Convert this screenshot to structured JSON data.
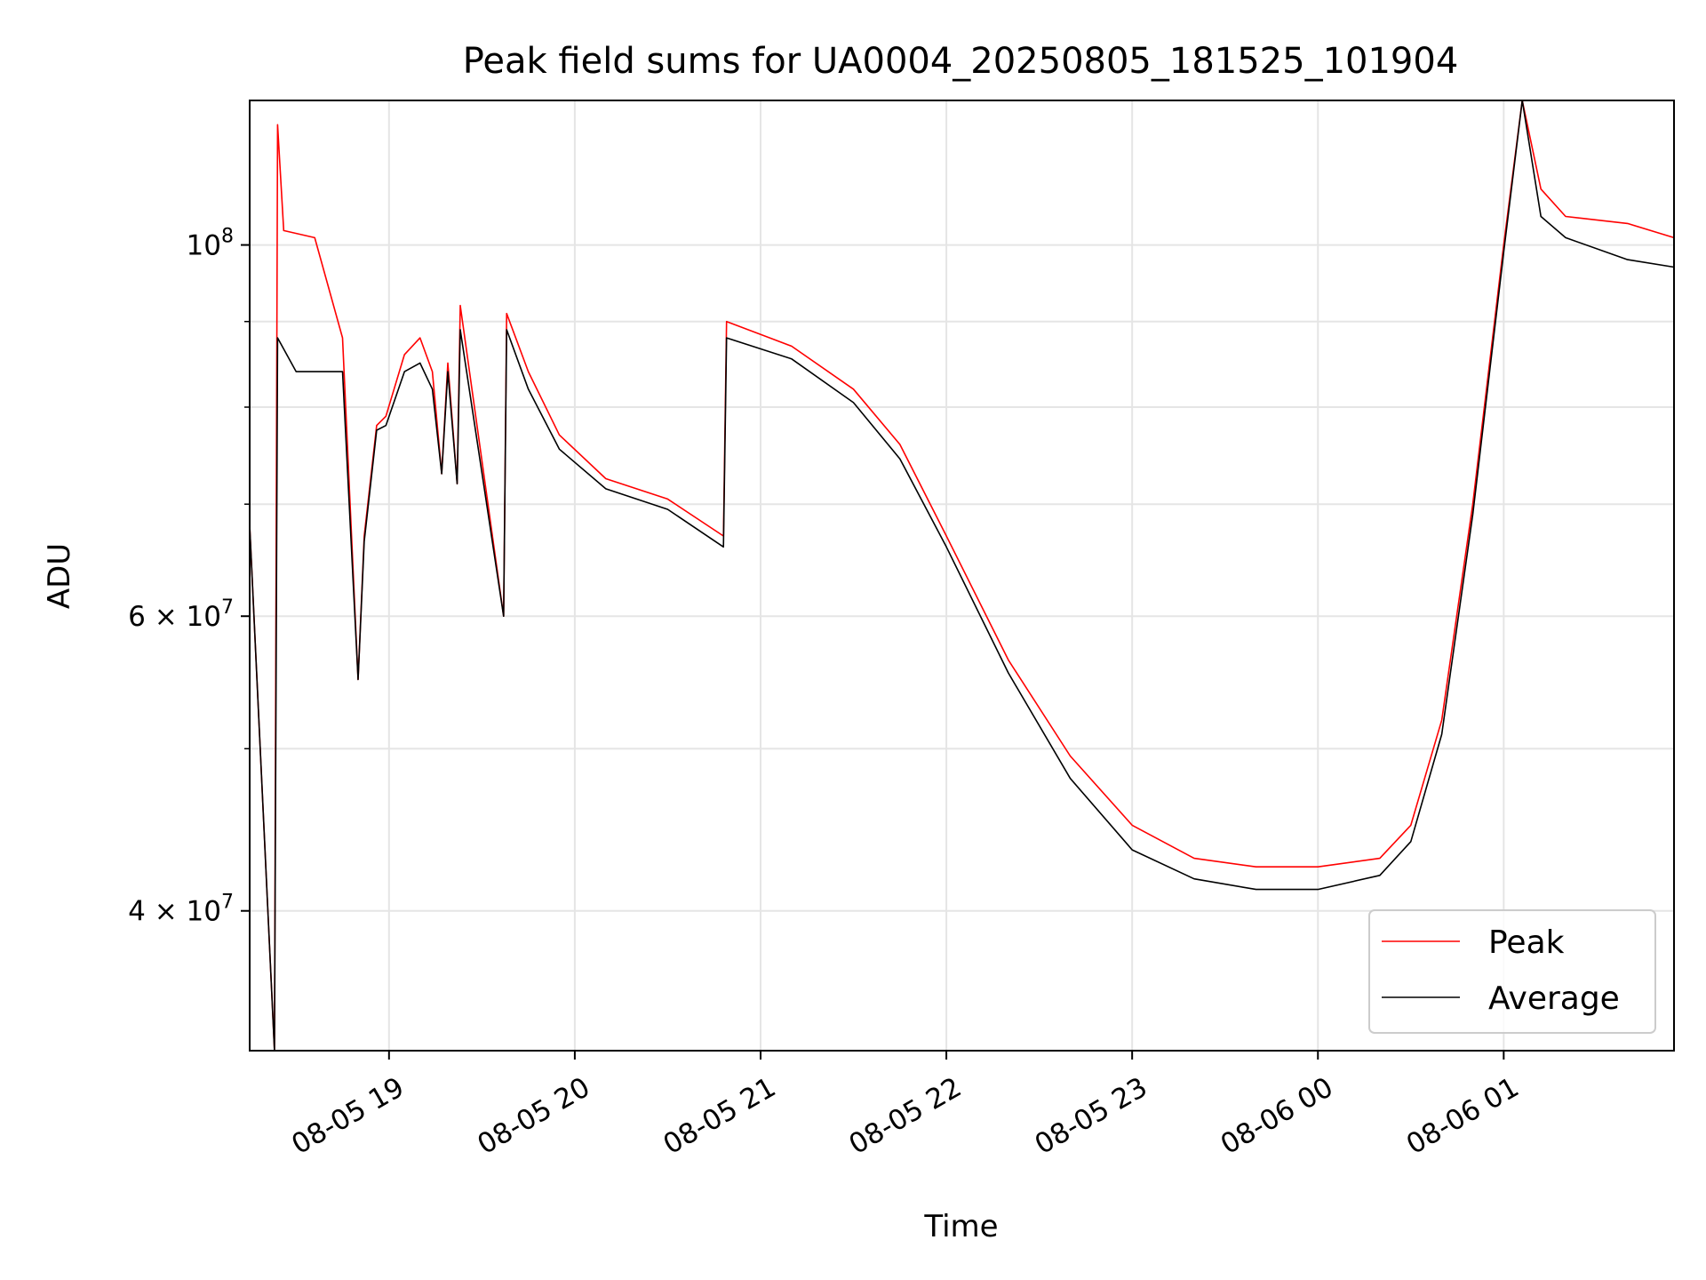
{
  "chart_data": {
    "type": "line",
    "title": "Peak field sums for UA0004_20250805_181525_101904",
    "xlabel": "Time",
    "ylabel": "ADU",
    "yscale": "log",
    "xlim": [
      "2025-08-05 18:15",
      "2025-08-06 01:55"
    ],
    "ylim": [
      33000000,
      122000000
    ],
    "grid": true,
    "legend_position": "lower-right",
    "x_ticks": [
      {
        "value": "2025-08-05 19:00",
        "label": "08-05 19"
      },
      {
        "value": "2025-08-05 20:00",
        "label": "08-05 20"
      },
      {
        "value": "2025-08-05 21:00",
        "label": "08-05 21"
      },
      {
        "value": "2025-08-05 22:00",
        "label": "08-05 22"
      },
      {
        "value": "2025-08-05 23:00",
        "label": "08-05 23"
      },
      {
        "value": "2025-08-06 00:00",
        "label": "08-06 00"
      },
      {
        "value": "2025-08-06 01:00",
        "label": "08-06 01"
      }
    ],
    "y_ticks": [
      {
        "value": 40000000,
        "base": "4 × 10",
        "exp": "7"
      },
      {
        "value": 60000000,
        "base": "6 × 10",
        "exp": "7"
      },
      {
        "value": 100000000,
        "base": "10",
        "exp": "8"
      }
    ],
    "y_minor_ticks": [
      50000000,
      70000000,
      80000000,
      90000000
    ],
    "series": [
      {
        "name": "Peak",
        "color": "#ff0000",
        "points": [
          [
            "2025-08-05 18:15",
            68000000
          ],
          [
            "2025-08-05 18:23",
            33000000
          ],
          [
            "2025-08-05 18:24",
            118000000
          ],
          [
            "2025-08-05 18:26",
            102000000
          ],
          [
            "2025-08-05 18:36",
            101000000
          ],
          [
            "2025-08-05 18:45",
            88000000
          ],
          [
            "2025-08-05 18:50",
            55000000
          ],
          [
            "2025-08-05 18:52",
            67000000
          ],
          [
            "2025-08-05 18:56",
            78000000
          ],
          [
            "2025-08-05 18:59",
            79000000
          ],
          [
            "2025-08-05 19:05",
            86000000
          ],
          [
            "2025-08-05 19:10",
            88000000
          ],
          [
            "2025-08-05 19:14",
            84000000
          ],
          [
            "2025-08-05 19:17",
            73000000
          ],
          [
            "2025-08-05 19:19",
            85000000
          ],
          [
            "2025-08-05 19:22",
            72000000
          ],
          [
            "2025-08-05 19:23",
            92000000
          ],
          [
            "2025-08-05 19:37",
            60000000
          ],
          [
            "2025-08-05 19:38",
            91000000
          ],
          [
            "2025-08-05 19:45",
            84000000
          ],
          [
            "2025-08-05 19:55",
            77000000
          ],
          [
            "2025-08-05 20:10",
            72500000
          ],
          [
            "2025-08-05 20:30",
            70500000
          ],
          [
            "2025-08-05 20:48",
            67000000
          ],
          [
            "2025-08-05 20:49",
            90000000
          ],
          [
            "2025-08-05 21:10",
            87000000
          ],
          [
            "2025-08-05 21:30",
            82000000
          ],
          [
            "2025-08-05 21:45",
            76000000
          ],
          [
            "2025-08-05 22:00",
            67000000
          ],
          [
            "2025-08-05 22:20",
            56500000
          ],
          [
            "2025-08-05 22:40",
            49500000
          ],
          [
            "2025-08-05 23:00",
            45000000
          ],
          [
            "2025-08-05 23:20",
            43000000
          ],
          [
            "2025-08-05 23:40",
            42500000
          ],
          [
            "2025-08-06 00:00",
            42500000
          ],
          [
            "2025-08-06 00:20",
            43000000
          ],
          [
            "2025-08-06 00:30",
            45000000
          ],
          [
            "2025-08-06 00:40",
            52000000
          ],
          [
            "2025-08-06 00:50",
            70000000
          ],
          [
            "2025-08-06 01:00",
            100000000
          ],
          [
            "2025-08-06 01:06",
            122000000
          ],
          [
            "2025-08-06 01:12",
            108000000
          ],
          [
            "2025-08-06 01:20",
            104000000
          ],
          [
            "2025-08-06 01:40",
            103000000
          ],
          [
            "2025-08-06 01:55",
            101000000
          ]
        ]
      },
      {
        "name": "Average",
        "color": "#000000",
        "points": [
          [
            "2025-08-05 18:15",
            68000000
          ],
          [
            "2025-08-05 18:23",
            33000000
          ],
          [
            "2025-08-05 18:24",
            88000000
          ],
          [
            "2025-08-05 18:30",
            84000000
          ],
          [
            "2025-08-05 18:45",
            84000000
          ],
          [
            "2025-08-05 18:50",
            55000000
          ],
          [
            "2025-08-05 18:52",
            66500000
          ],
          [
            "2025-08-05 18:56",
            77500000
          ],
          [
            "2025-08-05 18:59",
            78000000
          ],
          [
            "2025-08-05 19:05",
            84000000
          ],
          [
            "2025-08-05 19:10",
            85000000
          ],
          [
            "2025-08-05 19:14",
            82000000
          ],
          [
            "2025-08-05 19:17",
            73000000
          ],
          [
            "2025-08-05 19:19",
            84000000
          ],
          [
            "2025-08-05 19:22",
            72000000
          ],
          [
            "2025-08-05 19:23",
            89000000
          ],
          [
            "2025-08-05 19:37",
            60000000
          ],
          [
            "2025-08-05 19:38",
            89000000
          ],
          [
            "2025-08-05 19:45",
            82000000
          ],
          [
            "2025-08-05 19:55",
            75500000
          ],
          [
            "2025-08-05 20:10",
            71500000
          ],
          [
            "2025-08-05 20:30",
            69500000
          ],
          [
            "2025-08-05 20:48",
            66000000
          ],
          [
            "2025-08-05 20:49",
            88000000
          ],
          [
            "2025-08-05 21:10",
            85500000
          ],
          [
            "2025-08-05 21:30",
            80500000
          ],
          [
            "2025-08-05 21:45",
            74500000
          ],
          [
            "2025-08-05 22:00",
            66000000
          ],
          [
            "2025-08-05 22:20",
            55500000
          ],
          [
            "2025-08-05 22:40",
            48000000
          ],
          [
            "2025-08-05 23:00",
            43500000
          ],
          [
            "2025-08-05 23:20",
            41800000
          ],
          [
            "2025-08-05 23:40",
            41200000
          ],
          [
            "2025-08-06 00:00",
            41200000
          ],
          [
            "2025-08-06 00:20",
            42000000
          ],
          [
            "2025-08-06 00:30",
            44000000
          ],
          [
            "2025-08-06 00:40",
            51000000
          ],
          [
            "2025-08-06 00:50",
            69000000
          ],
          [
            "2025-08-06 01:00",
            99000000
          ],
          [
            "2025-08-06 01:06",
            122000000
          ],
          [
            "2025-08-06 01:12",
            104000000
          ],
          [
            "2025-08-06 01:20",
            101000000
          ],
          [
            "2025-08-06 01:40",
            98000000
          ],
          [
            "2025-08-06 01:55",
            97000000
          ]
        ]
      }
    ]
  }
}
